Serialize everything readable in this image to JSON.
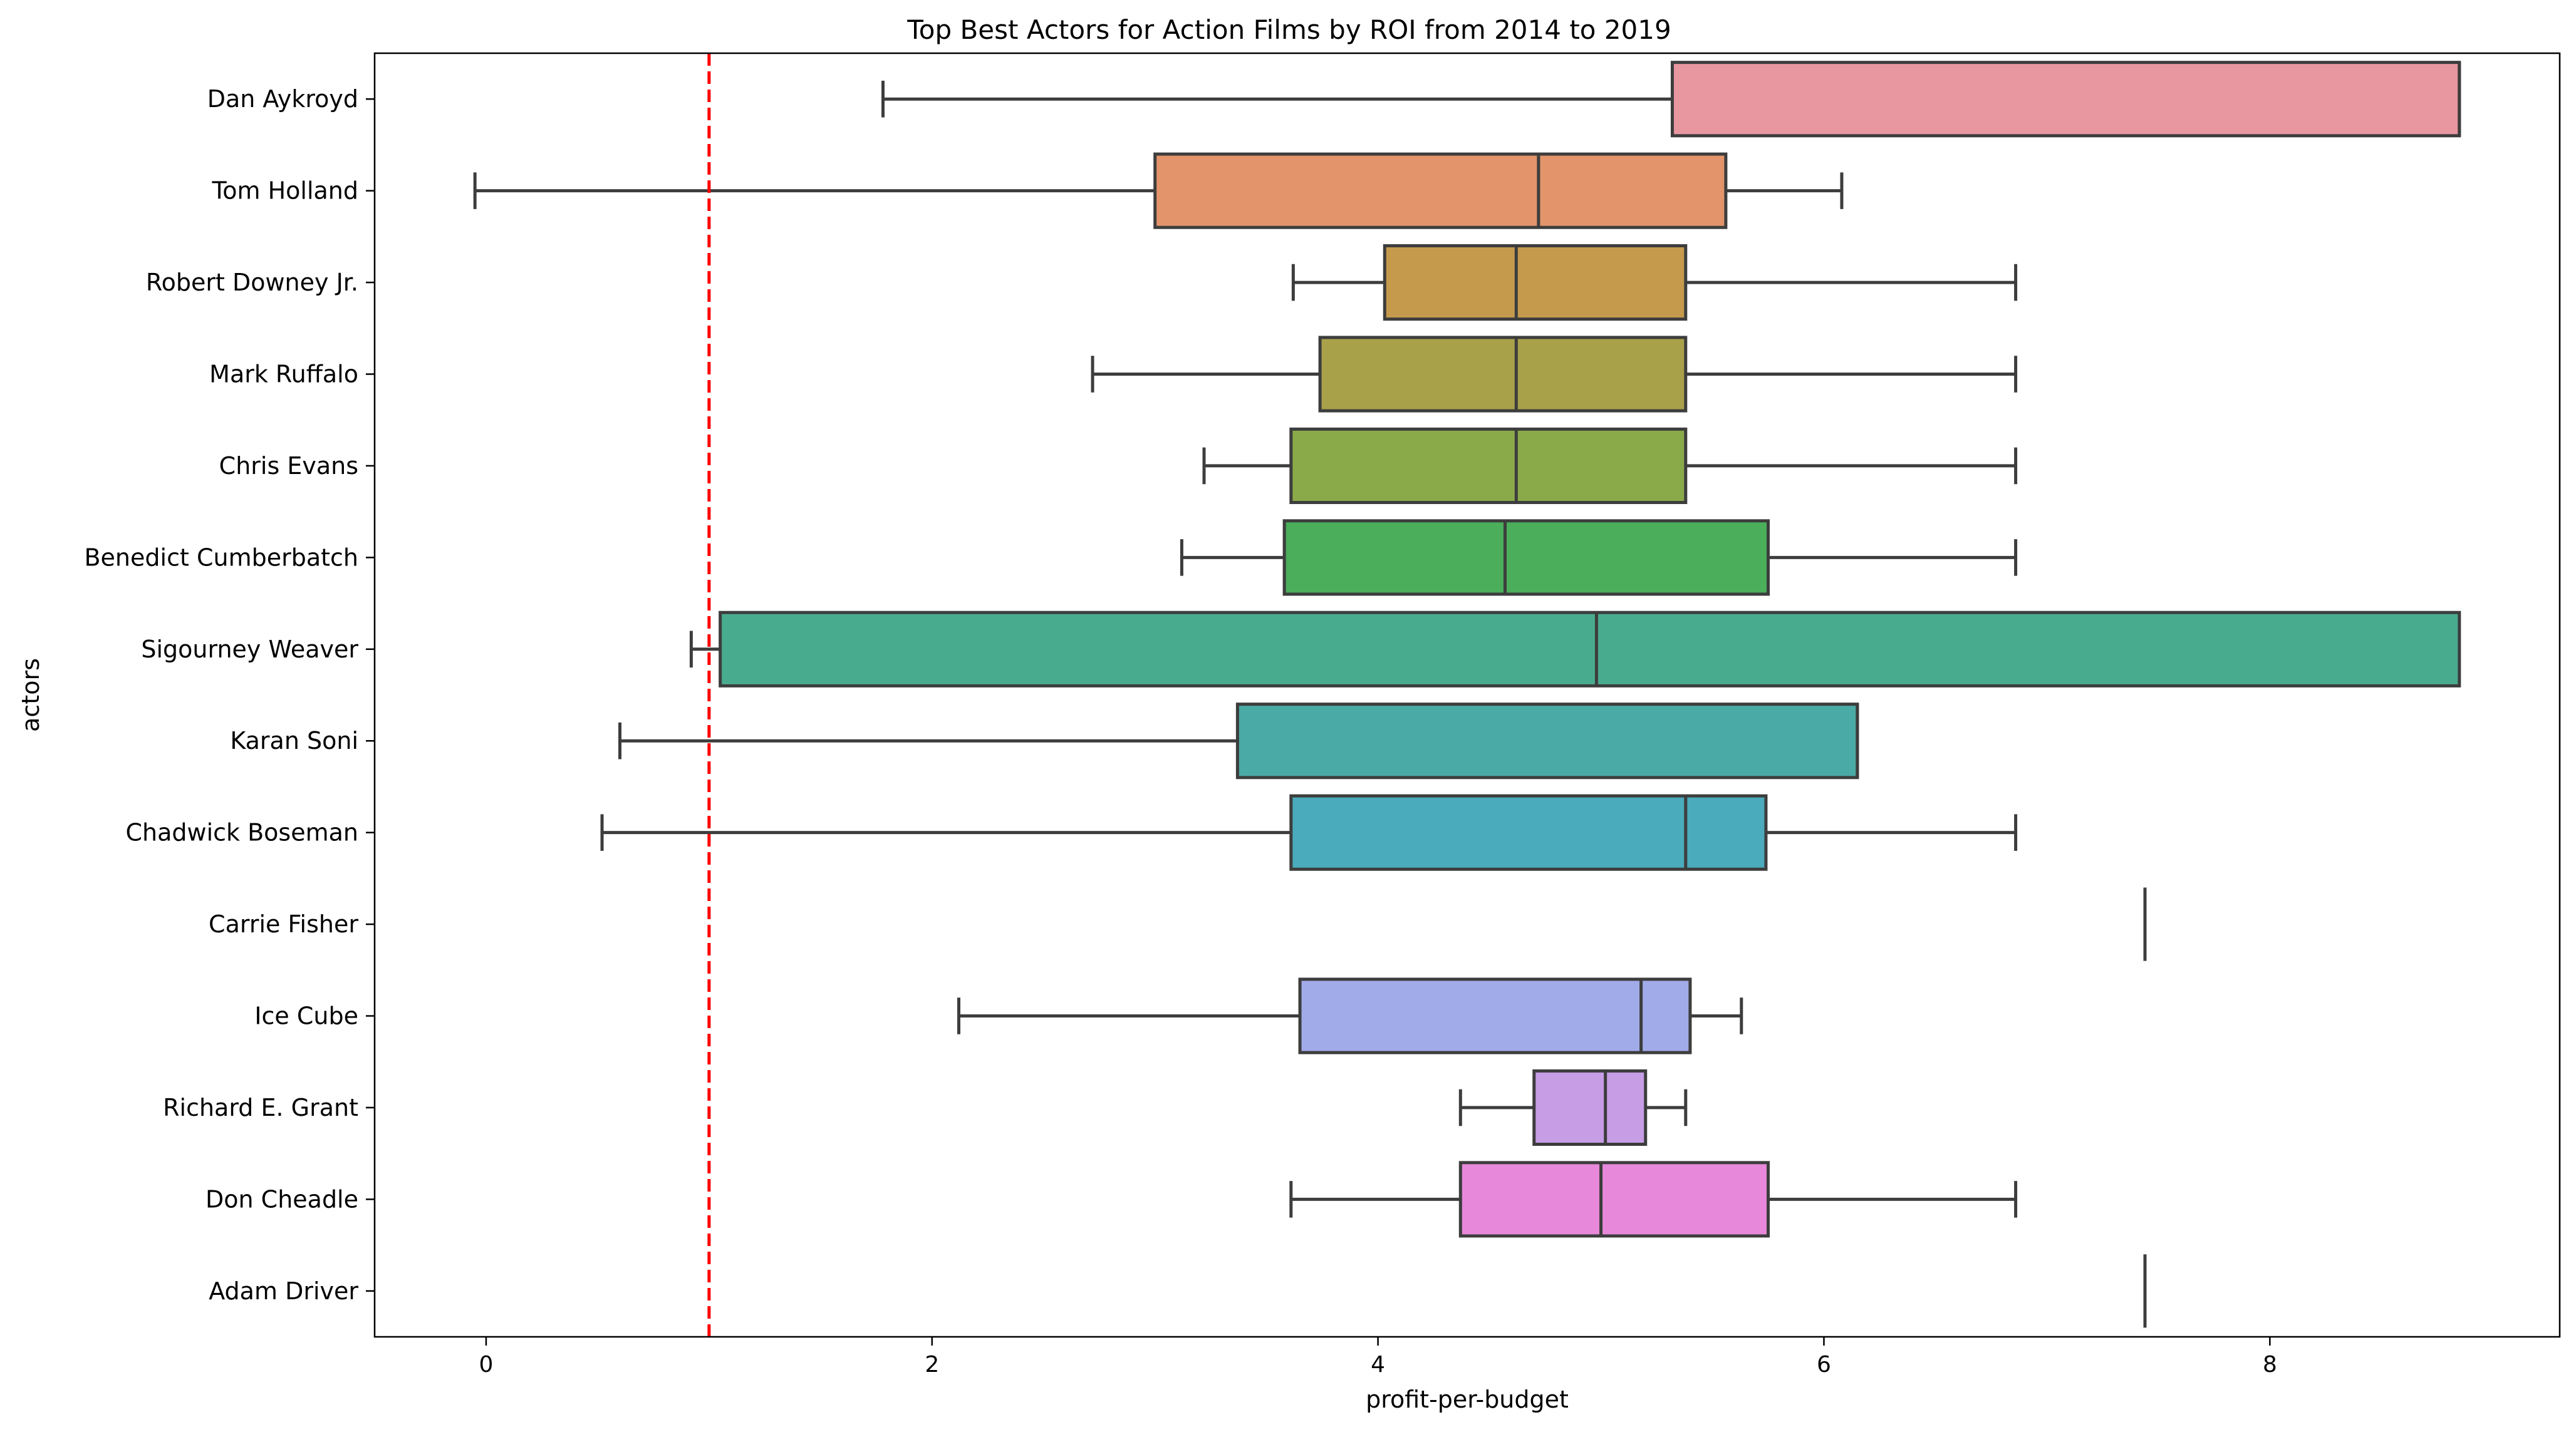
{
  "chart_data": {
    "type": "box",
    "orientation": "horizontal",
    "title": "Top Best Actors for Action Films by ROI from 2014 to 2019",
    "xlabel": "profit-per-budget",
    "ylabel": "actors",
    "xlim": [
      -0.5,
      9.3
    ],
    "xticks": [
      0,
      2,
      4,
      6,
      8
    ],
    "xtick_labels": [
      "0",
      "2",
      "4",
      "6",
      "8"
    ],
    "grid": false,
    "reference_line": {
      "x": 1.0,
      "color": "#ff0000",
      "style": "dashed"
    },
    "categories": [
      "Dan Aykroyd",
      "Tom Holland",
      "Robert Downey Jr.",
      "Mark Ruffalo",
      "Chris Evans",
      "Benedict Cumberbatch",
      "Sigourney Weaver",
      "Karan Soni",
      "Chadwick Boseman",
      "Carrie Fisher",
      "Ice Cube",
      "Richard E. Grant",
      "Don Cheadle",
      "Adam Driver"
    ],
    "boxes": [
      {
        "name": "Dan Aykroyd",
        "whisker_low": 1.78,
        "q1": 5.32,
        "median": 8.85,
        "q3": 8.85,
        "whisker_high": 8.85,
        "color": "#e8969f"
      },
      {
        "name": "Tom Holland",
        "whisker_low": -0.05,
        "q1": 3.0,
        "median": 4.72,
        "q3": 5.56,
        "whisker_high": 6.08,
        "color": "#e3946a"
      },
      {
        "name": "Robert Downey Jr.",
        "whisker_low": 3.62,
        "q1": 4.03,
        "median": 4.62,
        "q3": 5.38,
        "whisker_high": 6.86,
        "color": "#c59a4d"
      },
      {
        "name": "Mark Ruffalo",
        "whisker_low": 2.72,
        "q1": 3.74,
        "median": 4.62,
        "q3": 5.38,
        "whisker_high": 6.86,
        "color": "#a9a04a"
      },
      {
        "name": "Chris Evans",
        "whisker_low": 3.22,
        "q1": 3.61,
        "median": 4.62,
        "q3": 5.38,
        "whisker_high": 6.86,
        "color": "#8aaa4a"
      },
      {
        "name": "Benedict Cumberbatch",
        "whisker_low": 3.12,
        "q1": 3.58,
        "median": 4.57,
        "q3": 5.75,
        "whisker_high": 6.86,
        "color": "#4aae5b"
      },
      {
        "name": "Sigourney Weaver",
        "whisker_low": 0.92,
        "q1": 1.05,
        "median": 4.98,
        "q3": 8.85,
        "whisker_high": 8.85,
        "color": "#49ab8e"
      },
      {
        "name": "Karan Soni",
        "whisker_low": 0.6,
        "q1": 3.37,
        "median": 6.15,
        "q3": 6.15,
        "whisker_high": 6.15,
        "color": "#4aaaa5"
      },
      {
        "name": "Chadwick Boseman",
        "whisker_low": 0.52,
        "q1": 3.61,
        "median": 5.38,
        "q3": 5.74,
        "whisker_high": 6.86,
        "color": "#4aabbc"
      },
      {
        "name": "Carrie Fisher",
        "whisker_low": 7.44,
        "q1": 7.44,
        "median": 7.44,
        "q3": 7.44,
        "whisker_high": 7.44,
        "color": "#5aa9d6"
      },
      {
        "name": "Ice Cube",
        "whisker_low": 2.12,
        "q1": 3.65,
        "median": 5.18,
        "q3": 5.4,
        "whisker_high": 5.63,
        "color": "#a1abe9"
      },
      {
        "name": "Richard E. Grant",
        "whisker_low": 4.37,
        "q1": 4.7,
        "median": 5.02,
        "q3": 5.2,
        "whisker_high": 5.38,
        "color": "#c79de6"
      },
      {
        "name": "Don Cheadle",
        "whisker_low": 3.61,
        "q1": 4.37,
        "median": 5.0,
        "q3": 5.75,
        "whisker_high": 6.86,
        "color": "#e788da"
      },
      {
        "name": "Adam Driver",
        "whisker_low": 7.44,
        "q1": 7.44,
        "median": 7.44,
        "q3": 7.44,
        "whisker_high": 7.44,
        "color": "#e87ec0"
      }
    ]
  },
  "colors": {
    "box_edge": "#3d3d3d",
    "axis": "#000000",
    "reference_line": "#ff0000"
  }
}
